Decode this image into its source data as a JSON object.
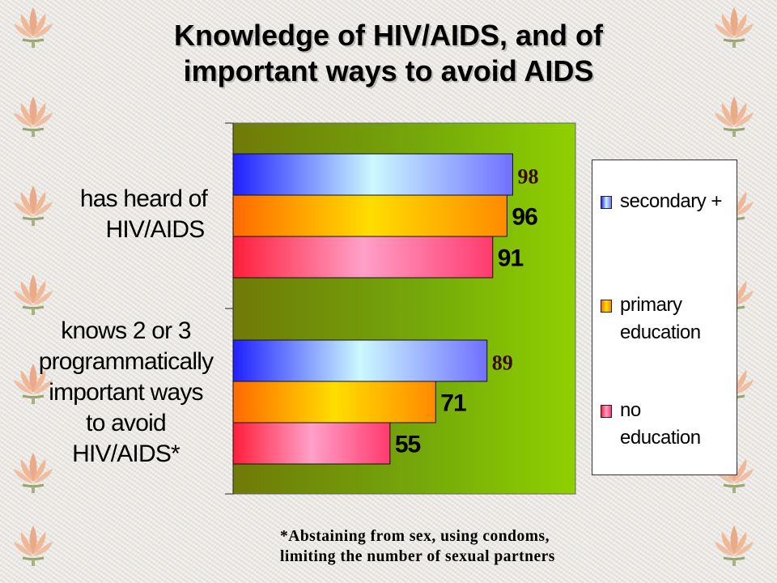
{
  "title_lines": [
    "Knowledge of HIV/AIDS, and of",
    "important ways to avoid AIDS"
  ],
  "chart_data": {
    "type": "bar",
    "orientation": "horizontal",
    "categories": [
      [
        "has heard of",
        "HIV/AIDS"
      ],
      [
        "knows 2 or 3",
        "programmatically",
        "important ways",
        "to avoid",
        "HIV/AIDS*"
      ]
    ],
    "series": [
      {
        "name": "secondary +",
        "values": [
          98,
          89
        ],
        "color": "#4040ff"
      },
      {
        "name": "primary education",
        "values": [
          96,
          71
        ],
        "color": "#ff8c00"
      },
      {
        "name": "no education",
        "values": [
          91,
          55
        ],
        "color": "#ff3060"
      }
    ],
    "data_labels": [
      "98",
      "96",
      "91",
      "89",
      "71",
      "55"
    ],
    "xlim": [
      0,
      120
    ],
    "legend_position": "right"
  },
  "legend": {
    "items": [
      {
        "lines": [
          "secondary +"
        ]
      },
      {
        "lines": [
          "primary",
          "education"
        ]
      },
      {
        "lines": [
          "no",
          "education"
        ]
      }
    ]
  },
  "footnote_lines": [
    "*Abstaining from sex, using condoms,",
    "limiting the number of sexual partners"
  ],
  "decoration": "lotus-icon"
}
